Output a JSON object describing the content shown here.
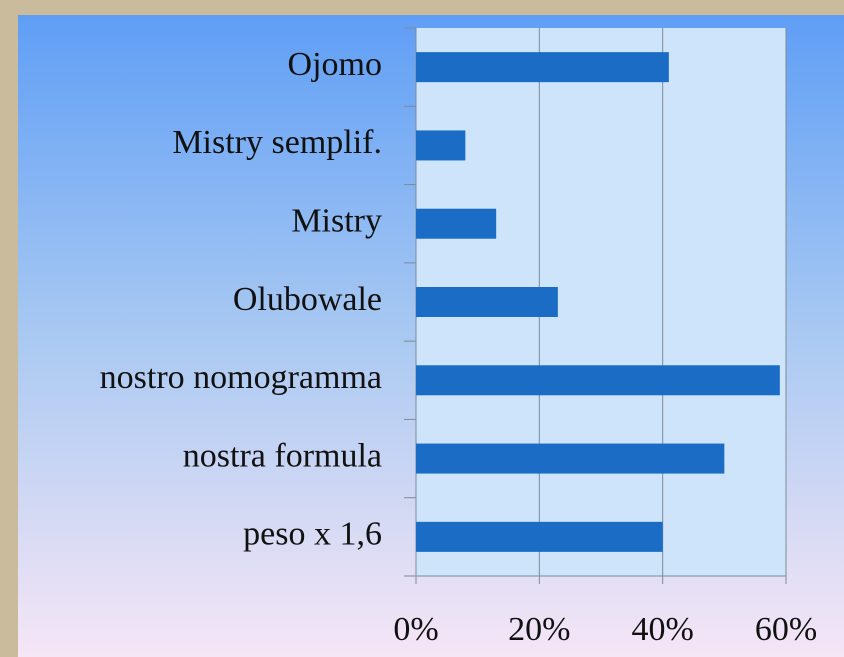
{
  "chart_data": {
    "type": "bar",
    "orientation": "horizontal",
    "categories": [
      "Ojomo",
      "Mistry semplif.",
      "Mistry",
      "Olubowale",
      "nostro nomogramma",
      "nostra formula",
      "peso x 1,6"
    ],
    "values": [
      41,
      8,
      13,
      23,
      59,
      50,
      40
    ],
    "color": "#1a6cc4",
    "xlim": [
      0,
      60
    ],
    "xticks": [
      {
        "value": 0,
        "label": "0%"
      },
      {
        "value": 20,
        "label": "20%"
      },
      {
        "value": 40,
        "label": "40%"
      },
      {
        "value": 60,
        "label": "60%"
      }
    ],
    "grid": true
  }
}
